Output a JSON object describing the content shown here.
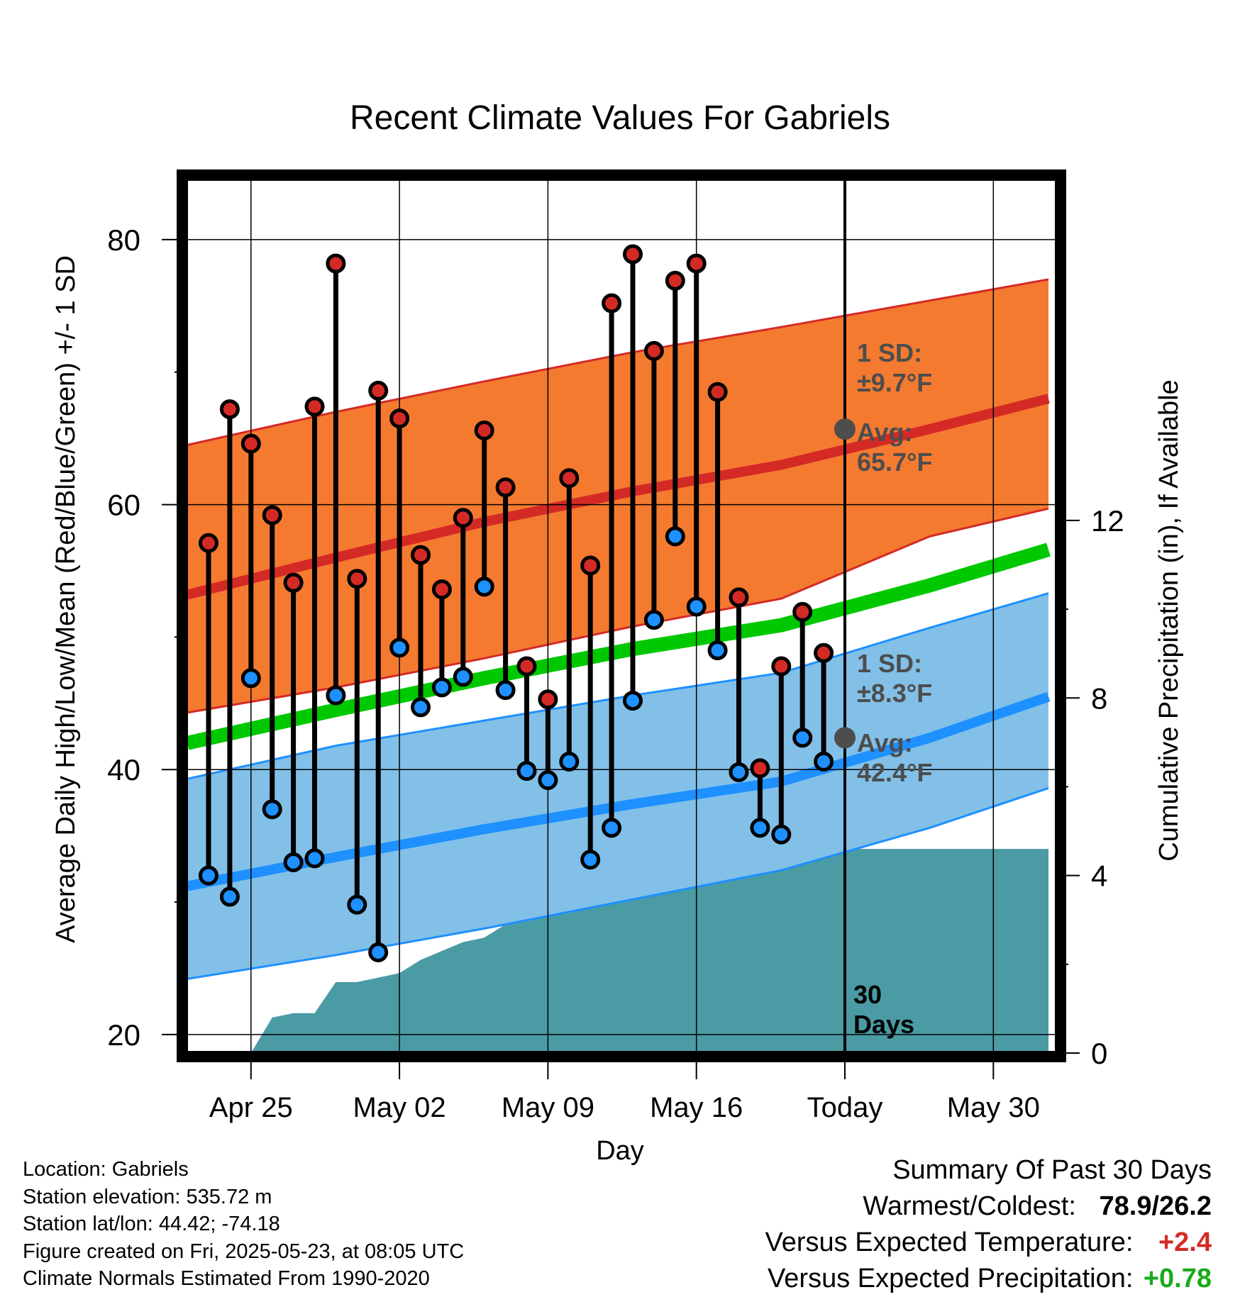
{
  "chart_data": {
    "type": "line",
    "title": "Recent Climate Values For Gabriels",
    "xlabel": "Day",
    "ylabel": "Average Daily High/Low/Mean (Red/Blue/Green) +/- 1 SD",
    "y2label": "Cumulative Precipitation (in), If Available",
    "x_ticks": [
      "Apr 25",
      "May 02",
      "May 09",
      "May 16",
      "Today",
      "May 30"
    ],
    "ylim": [
      18.6,
      84.6
    ],
    "y_ticks": [
      20,
      40,
      60,
      80
    ],
    "y2lim": [
      0,
      19.7
    ],
    "y2_ticks": [
      0,
      4,
      8,
      12
    ],
    "day_range": [
      -31,
      9.6
    ],
    "today_marker_label": "30 Days",
    "grid": true,
    "days": [
      -30,
      -29,
      -28,
      -27,
      -26,
      -25,
      -24,
      -23,
      -22,
      -21,
      -20,
      -19,
      -18,
      -17,
      -16,
      -15,
      -14,
      -13,
      -12,
      -11,
      -10,
      -9,
      -8,
      -7,
      -6,
      -5,
      -4,
      -3,
      -2,
      -1
    ],
    "daily_high": [
      57.1,
      67.2,
      64.6,
      59.2,
      54.1,
      67.4,
      78.2,
      54.4,
      68.6,
      66.5,
      56.2,
      53.6,
      59.0,
      65.6,
      61.3,
      47.8,
      45.3,
      62.0,
      55.4,
      75.2,
      78.9,
      71.6,
      76.9,
      78.2,
      68.5,
      53.0,
      40.1,
      47.8,
      51.9,
      48.8
    ],
    "daily_low": [
      32.0,
      30.4,
      46.9,
      37.0,
      33.0,
      33.3,
      45.6,
      29.8,
      26.2,
      49.2,
      44.7,
      46.2,
      47.0,
      53.8,
      46.0,
      39.9,
      39.2,
      40.6,
      33.2,
      35.6,
      45.2,
      51.3,
      57.6,
      52.3,
      49.0,
      39.8,
      35.6,
      35.1,
      42.4,
      40.6
    ],
    "normal_high": {
      "days": [
        -31,
        -24,
        -17,
        -10,
        -3,
        4,
        9.6
      ],
      "mean": [
        53.2,
        56.0,
        58.7,
        61.0,
        63.0,
        65.7,
        68.0
      ],
      "upper": [
        64.5,
        67.0,
        69.3,
        71.5,
        73.4,
        75.4,
        77.0
      ],
      "lower": [
        44.3,
        46.2,
        48.4,
        50.8,
        52.9,
        57.6,
        59.7
      ]
    },
    "normal_mean": {
      "days": [
        -31,
        -24,
        -17,
        -10,
        -3,
        4,
        9.6
      ],
      "values": [
        42.0,
        44.5,
        46.9,
        49.1,
        50.9,
        53.9,
        56.6
      ]
    },
    "normal_low": {
      "days": [
        -31,
        -24,
        -17,
        -10,
        -3,
        4,
        9.6
      ],
      "mean": [
        31.2,
        33.4,
        35.5,
        37.4,
        39.1,
        42.4,
        45.5
      ],
      "upper": [
        39.3,
        41.8,
        43.7,
        45.6,
        47.3,
        50.7,
        53.3
      ],
      "lower": [
        24.2,
        26.0,
        28.0,
        30.2,
        32.4,
        35.6,
        38.6
      ]
    },
    "precip": {
      "days": [
        -31,
        -28,
        -27,
        -26,
        -25,
        -24,
        -23,
        -22,
        -21,
        -20,
        -19,
        -18,
        -17,
        -16,
        -15,
        -14,
        -13,
        -12,
        -11,
        -10,
        -9,
        -8,
        -7,
        -6,
        -5,
        -4,
        -3,
        -2,
        -1,
        0,
        9.6
      ],
      "cumulative": [
        0,
        0,
        0.8,
        0.9,
        0.9,
        1.6,
        1.6,
        1.7,
        1.8,
        2.1,
        2.3,
        2.5,
        2.6,
        2.9,
        3.0,
        3.6,
        3.7,
        3.7,
        3.7,
        3.7,
        3.7,
        3.8,
        4.4,
        4.6,
        4.6,
        4.6,
        4.6,
        4.6,
        4.6,
        4.6,
        4.6
      ]
    },
    "annotations": {
      "high_sd_line1": "1 SD:",
      "high_sd_line2": "±9.7°F",
      "high_avg_line1": "Avg:",
      "high_avg_line2": "65.7°F",
      "low_sd_line1": "1 SD:",
      "low_sd_line2": "±8.3°F",
      "low_avg_line1": "Avg:",
      "low_avg_line2": "42.4°F",
      "today_value_high": 65.7,
      "today_value_low": 42.4
    },
    "colors": {
      "high_band": "#f47a30",
      "high_line": "#d42a26",
      "low_band": "#82c0e8",
      "low_line": "#1e90ff",
      "mean_line": "#00c800",
      "precip": "#4a9ba4",
      "annotation": "#4d4d4d"
    }
  },
  "station": {
    "location": "Location: Gabriels",
    "elevation": "Station elevation: 535.72 m",
    "latlon": "Station lat/lon: 44.42; -74.18",
    "created": "Figure created on Fri, 2025-05-23, at 08:05 UTC",
    "normals": "Climate Normals Estimated From 1990-2020"
  },
  "summary": {
    "title": "Summary Of Past 30 Days",
    "warm_cold_label": "Warmest/Coldest:",
    "warm_cold_value": "78.9/26.2",
    "temp_label": "Versus Expected Temperature:",
    "temp_value": "+2.4",
    "precip_label": "Versus Expected Precipitation:",
    "precip_value": "+0.78",
    "temp_color": "#d42a26",
    "precip_color": "#1aaa1a"
  }
}
